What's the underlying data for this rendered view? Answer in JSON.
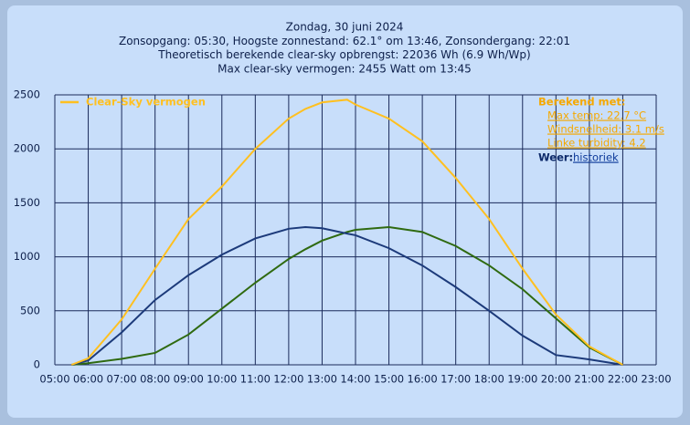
{
  "chart_data": {
    "type": "line",
    "title": [
      "Zondag, 30 juni 2024",
      "Zonsopgang: 05:30, Hoogste zonnestand: 62.1° om 13:46, Zonsondergang: 22:01",
      "Theoretisch berekende clear-sky opbrengst: 22036 Wh (6.9 Wh/Wp)",
      "Max clear-sky vermogen: 2455 Watt om 13:45"
    ],
    "x": [
      5.5,
      6,
      7,
      8,
      9,
      10,
      11,
      12,
      12.5,
      13,
      13.75,
      14,
      15,
      16,
      17,
      18,
      19,
      20,
      21,
      22
    ],
    "series": [
      {
        "name": "Clear-Sky vermogen",
        "color": "#ffc020",
        "values": [
          0,
          60,
          420,
          890,
          1350,
          1650,
          2000,
          2280,
          2370,
          2430,
          2455,
          2410,
          2280,
          2070,
          1730,
          1350,
          890,
          465,
          170,
          0
        ]
      },
      {
        "color": "#1c3a7a",
        "values": [
          0,
          40,
          300,
          600,
          830,
          1020,
          1170,
          1260,
          1275,
          1265,
          1215,
          1200,
          1080,
          920,
          720,
          500,
          270,
          90,
          50,
          0
        ]
      },
      {
        "color": "#2f6a10",
        "values": [
          0,
          15,
          55,
          110,
          280,
          520,
          760,
          980,
          1070,
          1150,
          1230,
          1250,
          1275,
          1230,
          1100,
          920,
          700,
          430,
          160,
          0
        ]
      }
    ],
    "xlim": [
      5,
      23
    ],
    "xticks": [
      {
        "value": 5,
        "label": "05:00"
      },
      {
        "value": 6,
        "label": "06:00"
      },
      {
        "value": 7,
        "label": "07:00"
      },
      {
        "value": 8,
        "label": "08:00"
      },
      {
        "value": 9,
        "label": "09:00"
      },
      {
        "value": 10,
        "label": "10:00"
      },
      {
        "value": 11,
        "label": "11:00"
      },
      {
        "value": 12,
        "label": "12:00"
      },
      {
        "value": 13,
        "label": "13:00"
      },
      {
        "value": 14,
        "label": "14:00"
      },
      {
        "value": 15,
        "label": "15:00"
      },
      {
        "value": 16,
        "label": "16:00"
      },
      {
        "value": 17,
        "label": "17:00"
      },
      {
        "value": 18,
        "label": "18:00"
      },
      {
        "value": 19,
        "label": "19:00"
      },
      {
        "value": 20,
        "label": "20:00"
      },
      {
        "value": 21,
        "label": "21:00"
      },
      {
        "value": 22,
        "label": "22:00"
      },
      {
        "value": 23,
        "label": "23:00"
      }
    ],
    "ylim": [
      0,
      2500
    ],
    "yticks": [
      0,
      500,
      1000,
      1500,
      2000,
      2500
    ],
    "grid": true,
    "legend": "upper left",
    "annotations": {
      "heading": "Berekend met:",
      "links": [
        "Max temp: 22.7 °C",
        "Windsnelheid: 3.1 m/s",
        "Linke turbidity: 4.2"
      ],
      "weather_label": "Weer:",
      "weather_link": "historiek"
    }
  }
}
